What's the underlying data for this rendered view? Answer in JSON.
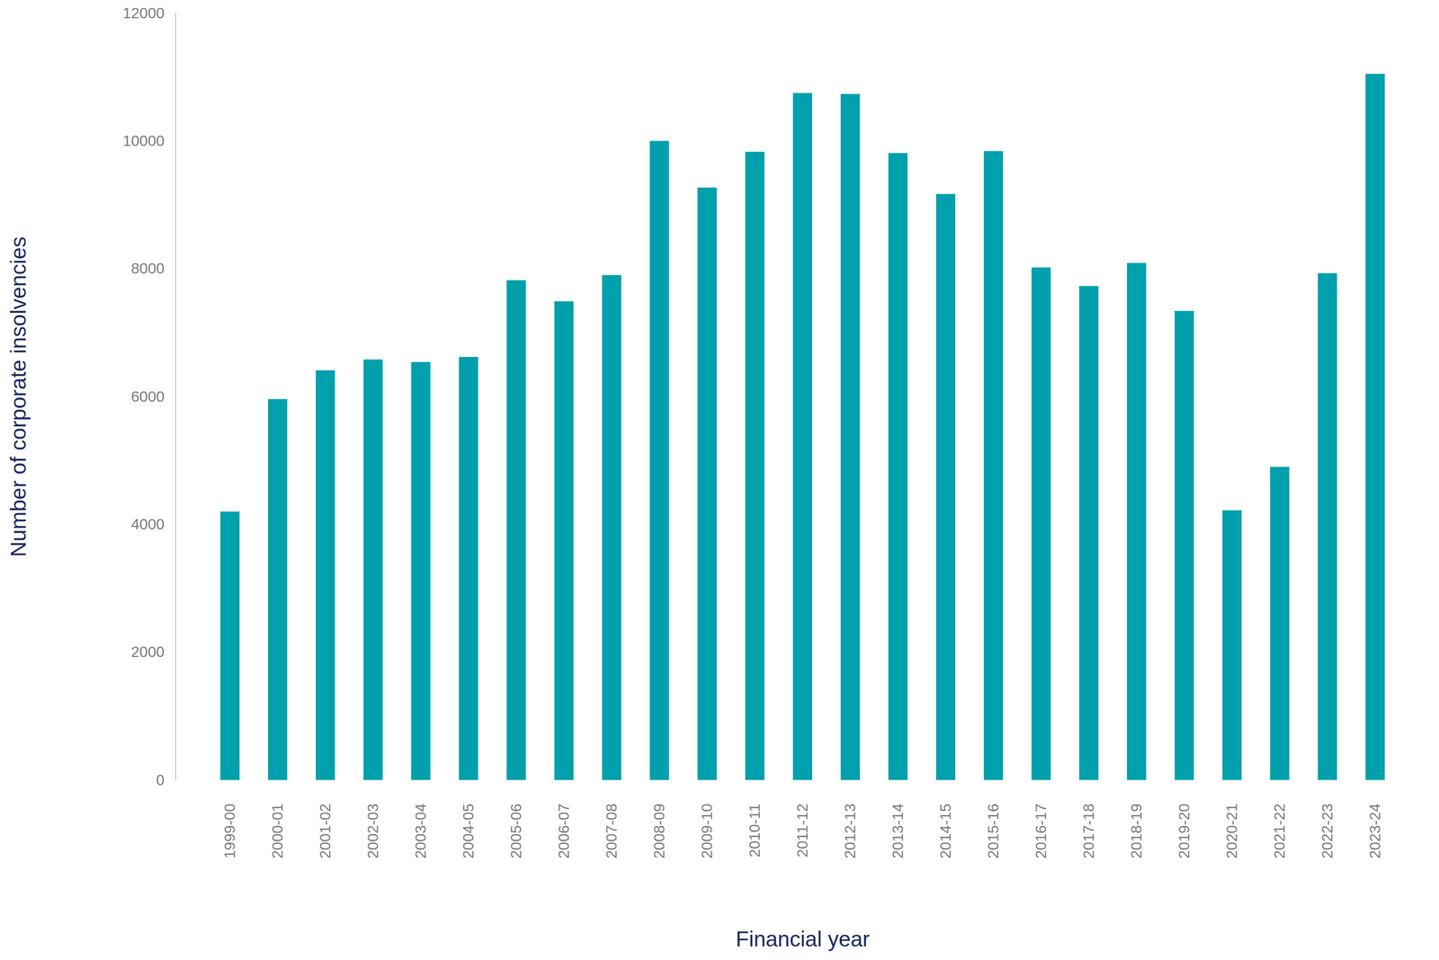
{
  "chart_data": {
    "type": "bar",
    "x_label": "Financial year",
    "y_label": "Number of corporate insolvencies",
    "categories": [
      "1999-00",
      "2000-01",
      "2001-02",
      "2002-03",
      "2003-04",
      "2004-05",
      "2005-06",
      "2006-07",
      "2007-08",
      "2008-09",
      "2009-10",
      "2010-11",
      "2011-12",
      "2012-13",
      "2013-14",
      "2014-15",
      "2015-16",
      "2016-17",
      "2017-18",
      "2018-19",
      "2019-20",
      "2020-21",
      "2021-22",
      "2022-23",
      "2023-24"
    ],
    "values": [
      4200,
      5960,
      6410,
      6580,
      6540,
      6620,
      7820,
      7490,
      7900,
      10000,
      9270,
      9830,
      10750,
      10735,
      9810,
      9170,
      9840,
      8020,
      7730,
      8090,
      7340,
      4220,
      4900,
      7930,
      11050
    ],
    "color": "#00a0ad",
    "ylim": [
      0,
      12000
    ],
    "yticks": [
      0,
      2000,
      4000,
      6000,
      8000,
      10000,
      12000
    ],
    "grid": false
  }
}
